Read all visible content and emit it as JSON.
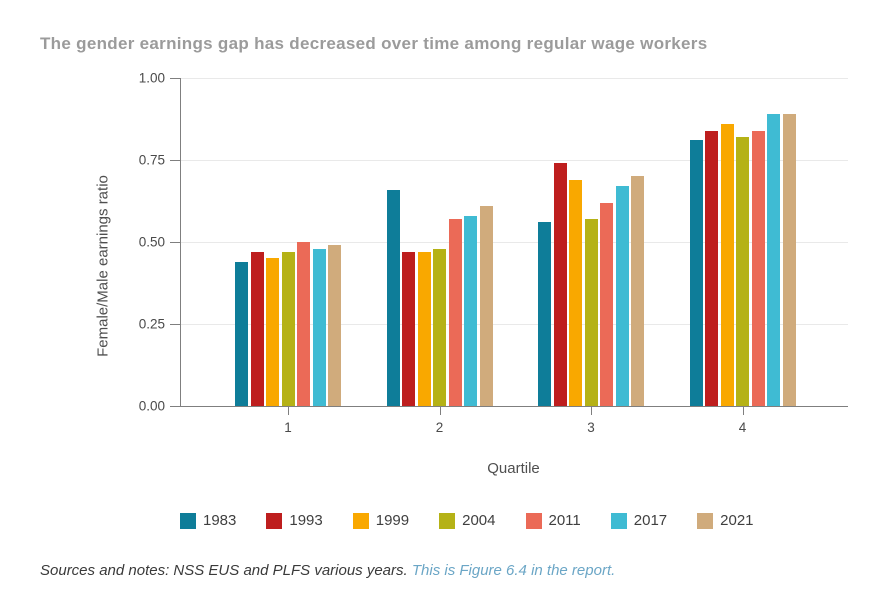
{
  "chart_data": {
    "type": "bar",
    "title": "The gender earnings gap has decreased over time among regular wage workers",
    "categories": [
      "1",
      "2",
      "3",
      "4"
    ],
    "series": [
      {
        "name": "1983",
        "color": "#0E7D99",
        "values": [
          0.44,
          0.66,
          0.56,
          0.81
        ]
      },
      {
        "name": "1993",
        "color": "#BE1E1E",
        "values": [
          0.47,
          0.47,
          0.74,
          0.84
        ]
      },
      {
        "name": "1999",
        "color": "#F9A800",
        "values": [
          0.45,
          0.47,
          0.69,
          0.86
        ]
      },
      {
        "name": "2004",
        "color": "#B5B216",
        "values": [
          0.47,
          0.48,
          0.57,
          0.82
        ]
      },
      {
        "name": "2011",
        "color": "#EB6A57",
        "values": [
          0.5,
          0.57,
          0.62,
          0.84
        ]
      },
      {
        "name": "2017",
        "color": "#3FBBD3",
        "values": [
          0.48,
          0.58,
          0.67,
          0.89
        ]
      },
      {
        "name": "2021",
        "color": "#D0AB7C",
        "values": [
          0.49,
          0.61,
          0.7,
          0.89
        ]
      }
    ],
    "xlabel": "Quartile",
    "ylabel": "Female/Male earnings ratio",
    "ylim": [
      0.0,
      1.0
    ],
    "yticks": [
      0.0,
      0.25,
      0.5,
      0.75,
      1.0
    ],
    "ytick_labels": [
      "0.00",
      "0.25",
      "0.50",
      "0.75",
      "1.00"
    ],
    "grid": true,
    "legend_position": "bottom"
  },
  "footnote": {
    "sources_text": "Sources and notes: NSS EUS and PLFS various years.",
    "link_text": "This is Figure 6.4 in the report."
  },
  "colors": {
    "title_text": "#9B9B9B",
    "axis_line": "#7F7F7F",
    "gridline": "#E9E9E9",
    "tick_label": "#4A4A4A",
    "axis_title": "#4F4F4F",
    "legend_label": "#3F3F3F",
    "footnote_text": "#3A3A3A",
    "link": "#6BA6C6",
    "background": "#FFFFFF"
  }
}
